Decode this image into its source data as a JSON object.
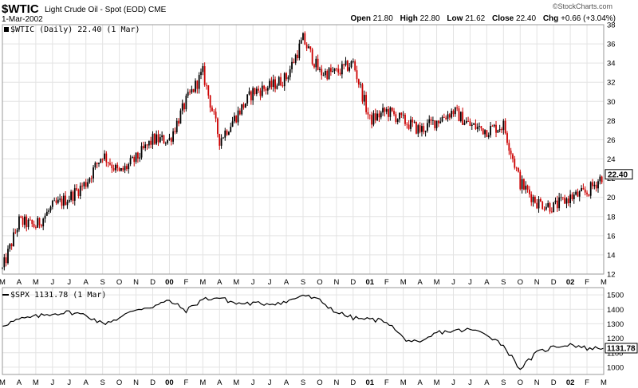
{
  "header": {
    "symbol": "$WTIC",
    "description": "Light Crude Oil - Spot (EOD)",
    "exchange": "CME",
    "date": "1-Mar-2002",
    "brand": "©StockCharts.com",
    "open_label": "Open",
    "open": "21.80",
    "high_label": "High",
    "high": "22.80",
    "low_label": "Low",
    "low": "21.62",
    "close_label": "Close",
    "close": "22.40",
    "chg_label": "Chg",
    "chg": "+0.66 (+3.04%)"
  },
  "chart_data": [
    {
      "type": "candlestick",
      "legend": "$WTIC (Daily) 22.40 (1 Mar)",
      "last_value_label": "22.40",
      "ylim": [
        12,
        38
      ],
      "yticks": [
        12,
        14,
        16,
        18,
        20,
        22,
        24,
        26,
        28,
        30,
        32,
        34,
        36,
        38
      ],
      "x_months": [
        "M",
        "A",
        "M",
        "J",
        "J",
        "A",
        "S",
        "O",
        "N",
        "D",
        "00",
        "F",
        "M",
        "A",
        "M",
        "J",
        "J",
        "A",
        "S",
        "O",
        "N",
        "D",
        "01",
        "F",
        "M",
        "A",
        "M",
        "J",
        "J",
        "A",
        "S",
        "O",
        "N",
        "D",
        "02",
        "F",
        "M"
      ],
      "year_labels": [
        "00",
        "01",
        "02"
      ],
      "approx_monthly_close": [
        12.5,
        17.5,
        17.0,
        19.0,
        20.0,
        21.5,
        24.5,
        22.5,
        24.0,
        26.0,
        26.0,
        30.0,
        33.0,
        26.0,
        28.5,
        31.0,
        31.5,
        32.5,
        36.5,
        33.0,
        33.0,
        34.0,
        28.0,
        29.0,
        28.0,
        27.0,
        28.0,
        29.0,
        27.5,
        27.0,
        27.5,
        21.5,
        19.5,
        19.0,
        20.0,
        20.5,
        22.4
      ],
      "up_color": "#000000",
      "down_color": "#cc0000"
    },
    {
      "type": "line",
      "legend": "$SPX 1131.78 (1 Mar)",
      "last_value_label": "1131.78",
      "ylim": [
        950,
        1550
      ],
      "yticks": [
        1000,
        1100,
        1200,
        1300,
        1400,
        1500
      ],
      "approx_monthly_close": [
        1290,
        1330,
        1350,
        1370,
        1380,
        1360,
        1300,
        1340,
        1400,
        1420,
        1460,
        1390,
        1470,
        1480,
        1440,
        1440,
        1440,
        1450,
        1500,
        1460,
        1380,
        1340,
        1330,
        1320,
        1200,
        1160,
        1240,
        1250,
        1260,
        1230,
        1150,
        990,
        1100,
        1140,
        1160,
        1130,
        1131.78
      ],
      "line_color": "#000000"
    }
  ]
}
